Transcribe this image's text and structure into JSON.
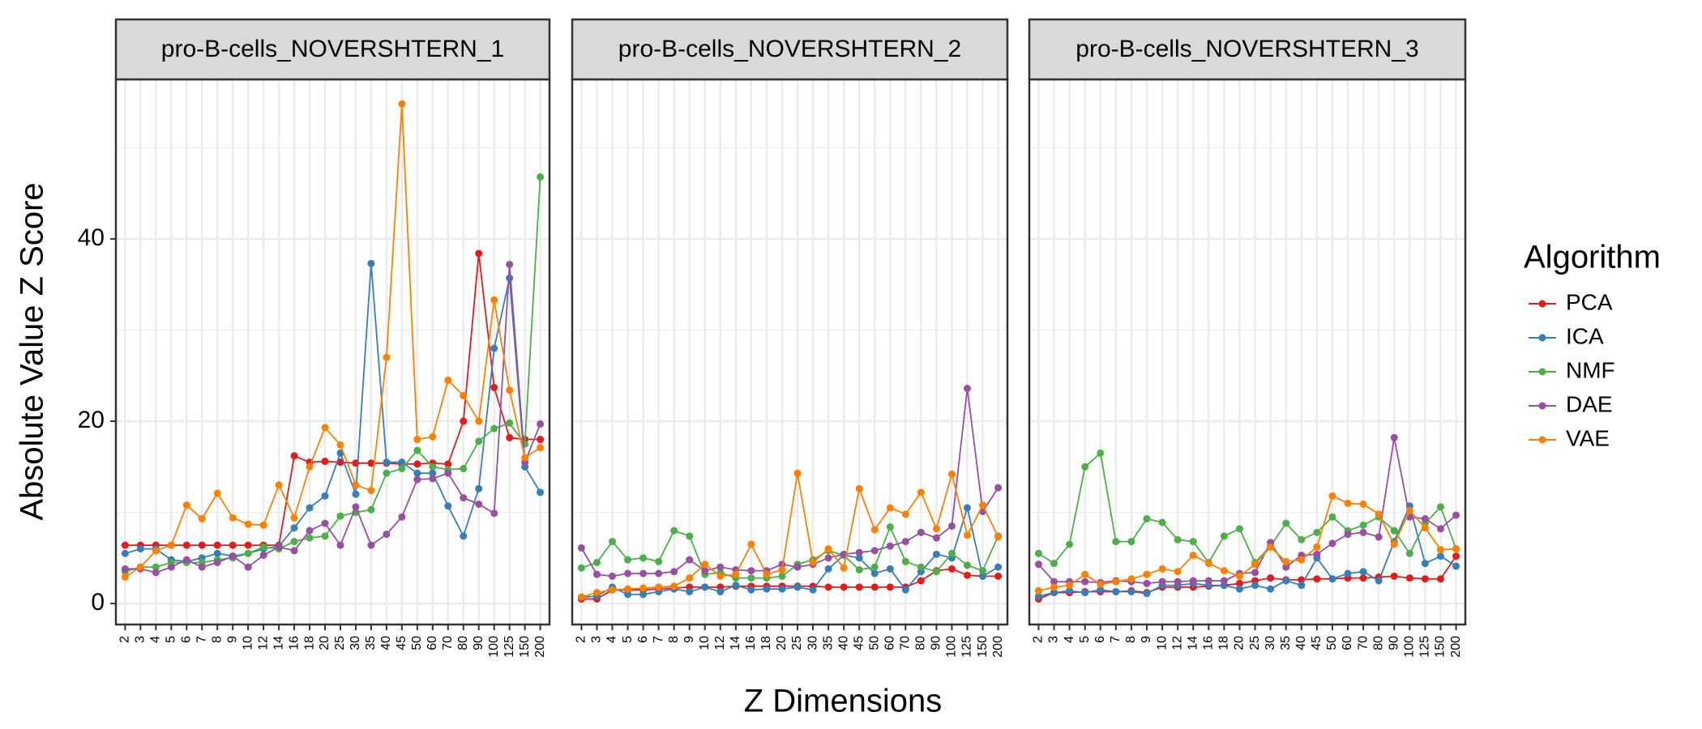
{
  "x_label": "Z Dimensions",
  "y_label": "Absolute Value Z Score",
  "legend_title": "Algorithm",
  "chart_data": [
    {
      "type": "line",
      "title": "pro-B-cells_NOVERSHTERN_1",
      "categories": [
        "2",
        "3",
        "4",
        "5",
        "6",
        "7",
        "8",
        "9",
        "10",
        "12",
        "14",
        "16",
        "18",
        "20",
        "25",
        "30",
        "35",
        "40",
        "45",
        "50",
        "60",
        "70",
        "80",
        "90",
        "100",
        "125",
        "150",
        "200"
      ],
      "ylim": [
        -2.3,
        57.5
      ],
      "yticks": [
        0,
        20,
        40
      ],
      "grid": true,
      "series": [
        {
          "name": "PCA",
          "color": "#e41a1c",
          "values": [
            6.4,
            6.4,
            6.4,
            6.4,
            6.4,
            6.4,
            6.4,
            6.4,
            6.4,
            6.4,
            6.4,
            16.2,
            15.5,
            15.6,
            15.5,
            15.4,
            15.4,
            15.4,
            15.3,
            15.3,
            15.4,
            15.3,
            20,
            38.4,
            23.7,
            18.2,
            18,
            18
          ]
        },
        {
          "name": "ICA",
          "color": "#377eb8",
          "values": [
            5.5,
            6,
            6,
            4.8,
            4.6,
            5,
            5.5,
            5.2,
            5.5,
            6,
            6.3,
            8.3,
            10.5,
            11.8,
            16.5,
            12,
            37.3,
            15.5,
            15.5,
            14.3,
            14.3,
            10.7,
            7.4,
            12.6,
            28,
            35.7,
            15,
            12.2
          ]
        },
        {
          "name": "NMF",
          "color": "#4daf4a",
          "values": [
            3.5,
            4,
            4,
            4.5,
            4.5,
            4.5,
            4.8,
            5,
            5.5,
            6.2,
            6,
            6.8,
            7.2,
            7.4,
            9.6,
            10,
            10.3,
            14.3,
            14.8,
            16.8,
            15,
            14.7,
            14.8,
            17.8,
            19.2,
            19.8,
            17.5,
            46.8
          ]
        },
        {
          "name": "DAE",
          "color": "#984ea3",
          "values": [
            3.8,
            3.8,
            3.4,
            4,
            4.8,
            4,
            4.5,
            5.2,
            4,
            5.3,
            6.2,
            5.8,
            8,
            8.8,
            6.4,
            10.6,
            6.4,
            7.6,
            9.5,
            13.6,
            13.7,
            14.3,
            11.6,
            10.9,
            9.9,
            37.2,
            15.5,
            19.7
          ]
        },
        {
          "name": "VAE",
          "color": "#ff7f00",
          "values": [
            2.9,
            4,
            5.8,
            6.4,
            10.8,
            9.3,
            12.1,
            9.4,
            8.7,
            8.6,
            13,
            9.4,
            15,
            19.3,
            17.4,
            13,
            12.4,
            27,
            54.8,
            18,
            18.3,
            24.5,
            22.8,
            20,
            33.3,
            23.4,
            16,
            17.1
          ]
        }
      ]
    },
    {
      "type": "line",
      "title": "pro-B-cells_NOVERSHTERN_2",
      "categories": [
        "2",
        "3",
        "4",
        "5",
        "6",
        "7",
        "8",
        "9",
        "10",
        "12",
        "14",
        "16",
        "18",
        "20",
        "25",
        "30",
        "35",
        "40",
        "45",
        "50",
        "60",
        "70",
        "80",
        "90",
        "100",
        "125",
        "150",
        "200"
      ],
      "ylim": [
        -2.3,
        57.5
      ],
      "yticks": [
        0,
        20,
        40
      ],
      "grid": true,
      "series": [
        {
          "name": "PCA",
          "color": "#e41a1c",
          "values": [
            0.5,
            0.5,
            1.5,
            1.5,
            1.5,
            1.6,
            1.7,
            1.8,
            1.8,
            1.8,
            1.9,
            1.9,
            1.9,
            1.9,
            1.9,
            1.9,
            1.8,
            1.8,
            1.8,
            1.8,
            1.8,
            1.8,
            2.5,
            3.6,
            3.8,
            3.1,
            3,
            3
          ]
        },
        {
          "name": "ICA",
          "color": "#377eb8",
          "values": [
            0.7,
            0.8,
            1.8,
            1,
            1,
            1.3,
            1.6,
            1.3,
            1.8,
            1.3,
            2,
            1.5,
            1.6,
            1.6,
            1.8,
            1.5,
            3.8,
            5.3,
            5,
            3.3,
            3.8,
            1.5,
            3.5,
            5.4,
            5,
            10.5,
            3,
            4
          ]
        },
        {
          "name": "NMF",
          "color": "#4daf4a",
          "values": [
            3.9,
            4.5,
            6.8,
            4.8,
            5,
            4.6,
            8,
            7.4,
            3.2,
            3.4,
            2.8,
            2.8,
            2.8,
            3,
            4.3,
            4.8,
            5.8,
            5.3,
            3.7,
            4,
            8.4,
            4.6,
            4,
            3.5,
            5.5,
            4.2,
            3.6,
            7.4
          ]
        },
        {
          "name": "DAE",
          "color": "#984ea3",
          "values": [
            6.1,
            3.2,
            3,
            3.3,
            3.3,
            3.3,
            3.5,
            4.8,
            3.6,
            4,
            3.7,
            3.6,
            3.6,
            4.3,
            4,
            4.3,
            5,
            5.4,
            5.6,
            5.8,
            6.3,
            6.8,
            7.8,
            7.2,
            8.5,
            23.6,
            10.1,
            12.7
          ]
        },
        {
          "name": "VAE",
          "color": "#ff7f00",
          "values": [
            0.7,
            1.2,
            1.5,
            1.6,
            1.7,
            1.8,
            1.9,
            2.8,
            4.3,
            3,
            3.2,
            6.5,
            3.2,
            3.7,
            14.3,
            4.5,
            6,
            3.9,
            12.6,
            8.1,
            10.5,
            9.8,
            12.2,
            8.2,
            14.2,
            7.5,
            10.8,
            7.3
          ]
        }
      ]
    },
    {
      "type": "line",
      "title": "pro-B-cells_NOVERSHTERN_3",
      "categories": [
        "2",
        "3",
        "4",
        "5",
        "6",
        "7",
        "8",
        "9",
        "10",
        "12",
        "14",
        "16",
        "18",
        "20",
        "25",
        "30",
        "35",
        "40",
        "45",
        "50",
        "60",
        "70",
        "80",
        "90",
        "100",
        "125",
        "150",
        "200"
      ],
      "ylim": [
        -2.3,
        57.5
      ],
      "yticks": [
        0,
        20,
        40
      ],
      "grid": true,
      "series": [
        {
          "name": "PCA",
          "color": "#e41a1c",
          "values": [
            0.5,
            1.2,
            1.2,
            1.3,
            1.3,
            1.3,
            1.4,
            1.2,
            1.8,
            1.8,
            1.8,
            1.9,
            2,
            2.2,
            2.5,
            2.8,
            2.6,
            2.6,
            2.7,
            2.7,
            2.8,
            2.8,
            2.9,
            3,
            2.8,
            2.7,
            2.7,
            5.2
          ]
        },
        {
          "name": "ICA",
          "color": "#377eb8",
          "values": [
            0.8,
            1.2,
            1.4,
            1.2,
            1.5,
            1.3,
            1.3,
            1.1,
            2,
            2,
            2.2,
            2,
            2,
            1.6,
            2,
            1.6,
            2.5,
            2,
            5,
            2.7,
            3.3,
            3.5,
            2.5,
            6.8,
            10.7,
            4.4,
            5.2,
            4.1
          ]
        },
        {
          "name": "NMF",
          "color": "#4daf4a",
          "values": [
            5.5,
            4.4,
            6.5,
            15,
            16.5,
            6.8,
            6.8,
            9.3,
            8.9,
            7,
            6.8,
            4.5,
            7.4,
            8.2,
            4.5,
            6.3,
            8.8,
            7,
            7.8,
            9.5,
            8,
            8.6,
            9.5,
            8,
            5.5,
            8.8,
            10.6,
            6
          ]
        },
        {
          "name": "DAE",
          "color": "#984ea3",
          "values": [
            4.3,
            2.4,
            2.4,
            2.4,
            2.3,
            2.5,
            2.4,
            2.2,
            2.4,
            2.4,
            2.5,
            2.5,
            2.5,
            3.3,
            3.4,
            6.7,
            4,
            5.3,
            5.4,
            6.6,
            7.6,
            7.8,
            7.3,
            18.2,
            9.5,
            9.3,
            8.2,
            9.7
          ]
        },
        {
          "name": "VAE",
          "color": "#ff7f00",
          "values": [
            1.4,
            1.8,
            2,
            3.2,
            2.1,
            2.4,
            2.7,
            3.2,
            3.8,
            3.5,
            5.3,
            4.4,
            3.6,
            3,
            4.3,
            6.2,
            4.6,
            4.8,
            6.2,
            11.8,
            11,
            10.9,
            9.8,
            6.5,
            10.2,
            8.3,
            5.9,
            6
          ]
        }
      ]
    }
  ]
}
